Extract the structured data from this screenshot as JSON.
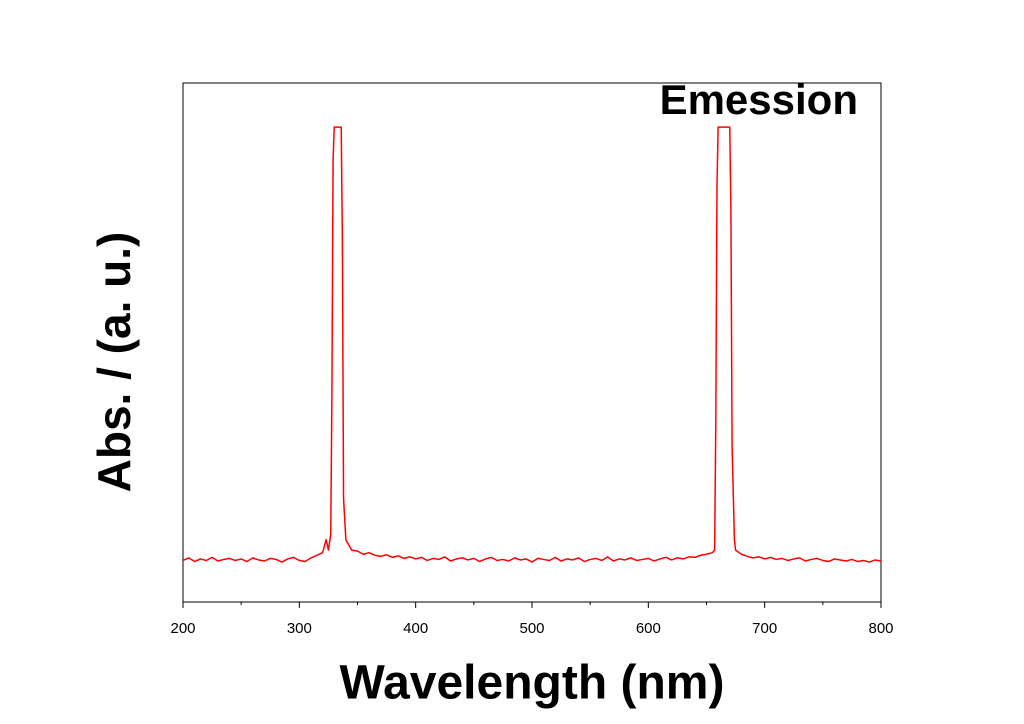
{
  "chart_data": {
    "type": "line",
    "title": "Emession",
    "xlabel": "Wavelength (nm)",
    "ylabel": "Abs. / (a. u.)",
    "color": "#ff0000",
    "xlim": [
      200,
      800
    ],
    "xticks": [
      200,
      300,
      400,
      500,
      600,
      700,
      800
    ],
    "xminorticks": [
      250,
      350,
      450,
      550,
      650,
      750
    ],
    "ylim": [
      0,
      1
    ],
    "x": [
      200,
      205,
      210,
      215,
      220,
      225,
      230,
      235,
      240,
      245,
      250,
      255,
      260,
      265,
      270,
      275,
      280,
      285,
      290,
      295,
      300,
      305,
      310,
      315,
      320,
      323,
      325,
      327,
      328,
      329,
      330,
      336,
      337,
      338,
      340,
      345,
      350,
      355,
      360,
      365,
      370,
      375,
      380,
      385,
      390,
      395,
      400,
      405,
      410,
      415,
      420,
      425,
      430,
      435,
      440,
      445,
      450,
      455,
      460,
      465,
      470,
      475,
      480,
      485,
      490,
      495,
      500,
      505,
      510,
      515,
      520,
      525,
      530,
      535,
      540,
      545,
      550,
      555,
      560,
      565,
      570,
      575,
      580,
      585,
      590,
      595,
      600,
      605,
      610,
      615,
      620,
      625,
      630,
      635,
      640,
      645,
      650,
      655,
      657,
      658,
      659,
      660,
      670,
      671,
      672,
      674,
      675,
      680,
      685,
      690,
      695,
      700,
      705,
      710,
      715,
      720,
      725,
      730,
      735,
      740,
      745,
      750,
      755,
      760,
      765,
      770,
      775,
      780,
      785,
      790,
      795,
      800
    ],
    "values": [
      0.08,
      0.085,
      0.078,
      0.083,
      0.08,
      0.086,
      0.079,
      0.082,
      0.084,
      0.08,
      0.083,
      0.078,
      0.085,
      0.081,
      0.079,
      0.084,
      0.082,
      0.077,
      0.083,
      0.086,
      0.08,
      0.078,
      0.085,
      0.09,
      0.095,
      0.12,
      0.1,
      0.13,
      0.4,
      0.85,
      0.915,
      0.915,
      0.7,
      0.2,
      0.12,
      0.1,
      0.098,
      0.092,
      0.095,
      0.09,
      0.088,
      0.091,
      0.086,
      0.089,
      0.084,
      0.087,
      0.083,
      0.086,
      0.08,
      0.084,
      0.082,
      0.087,
      0.079,
      0.083,
      0.085,
      0.081,
      0.084,
      0.078,
      0.083,
      0.086,
      0.08,
      0.082,
      0.079,
      0.085,
      0.081,
      0.083,
      0.077,
      0.084,
      0.082,
      0.08,
      0.086,
      0.079,
      0.083,
      0.081,
      0.085,
      0.078,
      0.082,
      0.084,
      0.08,
      0.087,
      0.079,
      0.083,
      0.081,
      0.085,
      0.08,
      0.082,
      0.084,
      0.079,
      0.083,
      0.086,
      0.081,
      0.085,
      0.083,
      0.087,
      0.086,
      0.09,
      0.092,
      0.095,
      0.1,
      0.35,
      0.8,
      0.915,
      0.915,
      0.75,
      0.3,
      0.12,
      0.1,
      0.092,
      0.088,
      0.085,
      0.087,
      0.083,
      0.086,
      0.082,
      0.084,
      0.08,
      0.083,
      0.085,
      0.079,
      0.082,
      0.084,
      0.08,
      0.078,
      0.083,
      0.081,
      0.079,
      0.082,
      0.078,
      0.08,
      0.077,
      0.081,
      0.079
    ]
  }
}
